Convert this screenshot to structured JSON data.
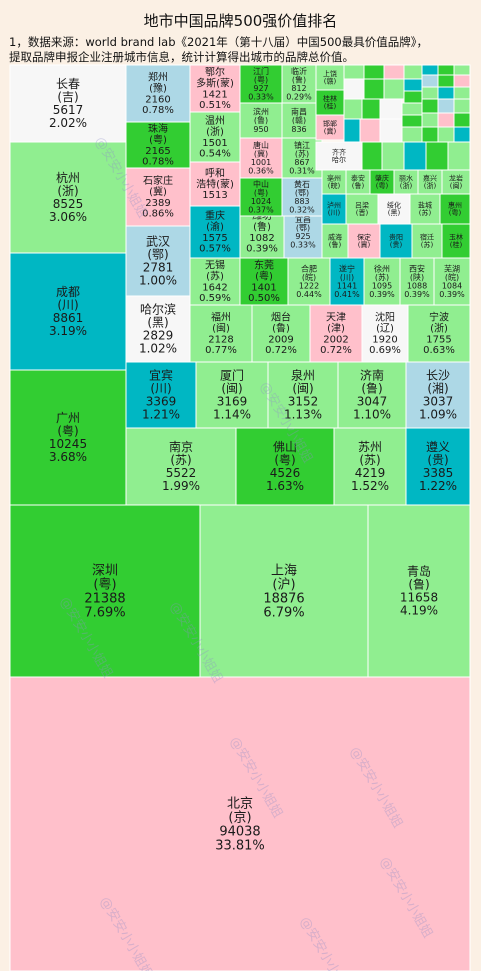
{
  "title": "地市中国品牌500强价值排名",
  "notes": [
    "1，数据来源：world brand lab《2021年（第十八届）中国500最具价值品牌》，",
    "提取品牌申报企业注册城市信息，统计计算得出城市的品牌总价值。"
  ],
  "watermark": "@安安小小姐姐",
  "colors": {
    "pink": "#FFC0CB",
    "lightgreen": "#90EE90",
    "green": "#32CD32",
    "teal": "#00B7C3",
    "lightblue": "#ADD8E6",
    "white": "#F7F7F7",
    "border": "#FFFFFF"
  },
  "chart_data": {
    "type": "treemap",
    "title": "地市中国品牌500强价值排名",
    "value_unit": "",
    "cells": [
      {
        "city": "北京",
        "prov": "(京)",
        "value": 94038,
        "pct": "33.81%",
        "color": "pink"
      },
      {
        "city": "深圳",
        "prov": "(粤)",
        "value": 21388,
        "pct": "7.69%",
        "color": "green"
      },
      {
        "city": "上海",
        "prov": "(沪)",
        "value": 18876,
        "pct": "6.79%",
        "color": "lightgreen"
      },
      {
        "city": "青岛",
        "prov": "(鲁)",
        "value": 11658,
        "pct": "4.19%",
        "color": "lightgreen"
      },
      {
        "city": "广州",
        "prov": "(粤)",
        "value": 10245,
        "pct": "3.68%",
        "color": "green"
      },
      {
        "city": "成都",
        "prov": "(川)",
        "value": 8861,
        "pct": "3.19%",
        "color": "teal"
      },
      {
        "city": "杭州",
        "prov": "(浙)",
        "value": 8525,
        "pct": "3.06%",
        "color": "lightgreen"
      },
      {
        "city": "长春",
        "prov": "(吉)",
        "value": 5617,
        "pct": "2.02%",
        "color": "white"
      },
      {
        "city": "南京",
        "prov": "(苏)",
        "value": 5522,
        "pct": "1.99%",
        "color": "lightgreen"
      },
      {
        "city": "佛山",
        "prov": "(粤)",
        "value": 4526,
        "pct": "1.63%",
        "color": "green"
      },
      {
        "city": "苏州",
        "prov": "(苏)",
        "value": 4219,
        "pct": "1.52%",
        "color": "lightgreen"
      },
      {
        "city": "遵义",
        "prov": "(贵)",
        "value": 3385,
        "pct": "1.22%",
        "color": "teal"
      },
      {
        "city": "宜宾",
        "prov": "(川)",
        "value": 3369,
        "pct": "1.21%",
        "color": "teal"
      },
      {
        "city": "厦门",
        "prov": "(闽)",
        "value": 3169,
        "pct": "1.14%",
        "color": "lightgreen"
      },
      {
        "city": "泉州",
        "prov": "(闽)",
        "value": 3152,
        "pct": "1.13%",
        "color": "lightgreen"
      },
      {
        "city": "济南",
        "prov": "(鲁)",
        "value": 3047,
        "pct": "1.10%",
        "color": "lightgreen"
      },
      {
        "city": "长沙",
        "prov": "(湘)",
        "value": 3037,
        "pct": "1.09%",
        "color": "lightblue"
      },
      {
        "city": "哈尔滨",
        "prov": "(黑)",
        "value": 2829,
        "pct": "1.02%",
        "color": "white"
      },
      {
        "city": "武汉",
        "prov": "(鄂)",
        "value": 2781,
        "pct": "1.00%",
        "color": "lightblue"
      },
      {
        "city": "石家庄",
        "prov": "(冀)",
        "value": 2389,
        "pct": "0.86%",
        "color": "pink"
      },
      {
        "city": "珠海",
        "prov": "(粤)",
        "value": 2165,
        "pct": "0.78%",
        "color": "green"
      },
      {
        "city": "郑州",
        "prov": "(豫)",
        "value": 2160,
        "pct": "0.78%",
        "color": "lightblue"
      },
      {
        "city": "福州",
        "prov": "(闽)",
        "value": 2128,
        "pct": "0.77%",
        "color": "lightgreen"
      },
      {
        "city": "烟台",
        "prov": "(鲁)",
        "value": 2009,
        "pct": "0.72%",
        "color": "lightgreen"
      },
      {
        "city": "天津",
        "prov": "(津)",
        "value": 2002,
        "pct": "0.72%",
        "color": "pink"
      },
      {
        "city": "沈阳",
        "prov": "(辽)",
        "value": 1920,
        "pct": "0.69%",
        "color": "white"
      },
      {
        "city": "宁波",
        "prov": "(浙)",
        "value": 1755,
        "pct": "0.63%",
        "color": "lightgreen"
      },
      {
        "city": "无锡",
        "prov": "(苏)",
        "value": 1642,
        "pct": "0.59%",
        "color": "lightgreen"
      },
      {
        "city": "重庆",
        "prov": "(渝)",
        "value": 1575,
        "pct": "0.57%",
        "color": "teal"
      },
      {
        "city": "呼和浩特",
        "prov": "(蒙)",
        "value": 1513,
        "pct": "0.54%",
        "color": "pink"
      },
      {
        "city": "温州",
        "prov": "(浙)",
        "value": 1501,
        "pct": "0.54%",
        "color": "lightgreen"
      },
      {
        "city": "鄂尔多斯",
        "prov": "(蒙)",
        "value": 1421,
        "pct": "0.51%",
        "color": "pink"
      },
      {
        "city": "东莞",
        "prov": "(粤)",
        "value": 1401,
        "pct": "0.50%",
        "color": "green"
      },
      {
        "city": "合肥",
        "prov": "(皖)",
        "value": 1222,
        "pct": "0.44%",
        "color": "lightgreen"
      },
      {
        "city": "遂宁",
        "prov": "(川)",
        "value": 1141,
        "pct": "0.41%",
        "color": "teal"
      },
      {
        "city": "徐州",
        "prov": "(苏)",
        "value": 1095,
        "pct": "0.39%",
        "color": "lightgreen"
      },
      {
        "city": "西安",
        "prov": "(陕)",
        "value": 1088,
        "pct": "0.39%",
        "color": "lightgreen"
      },
      {
        "city": "芜湖",
        "prov": "(皖)",
        "value": 1084,
        "pct": "0.39%",
        "color": "lightgreen"
      },
      {
        "city": "潍坊",
        "prov": "(鲁)",
        "value": 1082,
        "pct": "0.39%",
        "color": "lightgreen"
      },
      {
        "city": "中山",
        "prov": "(粤)",
        "value": 1024,
        "pct": "0.37%",
        "color": "green"
      },
      {
        "city": "唐山",
        "prov": "(冀)",
        "value": 1001,
        "pct": "0.36%",
        "color": "pink"
      },
      {
        "city": "滨州",
        "prov": "(鲁)",
        "value": 950,
        "pct": "0.34%",
        "color": "lightgreen"
      },
      {
        "city": "江门",
        "prov": "(粤)",
        "value": 927,
        "pct": "0.33%",
        "color": "green"
      },
      {
        "city": "宜昌",
        "prov": "(鄂)",
        "value": 925,
        "pct": "0.33%",
        "color": "lightblue"
      },
      {
        "city": "黄石",
        "prov": "(鄂)",
        "value": 883,
        "pct": "0.32%",
        "color": "lightblue"
      },
      {
        "city": "镇江",
        "prov": "(苏)",
        "value": 867,
        "pct": "0.31%",
        "color": "lightgreen"
      },
      {
        "city": "南昌",
        "prov": "(赣)",
        "value": 836,
        "pct": "0.30%",
        "color": "lightgreen"
      },
      {
        "city": "临沂",
        "prov": "(鲁)",
        "value": 812,
        "pct": "0.29%",
        "color": "lightgreen"
      },
      {
        "city": "上饶",
        "prov": "(赣)",
        "value": null,
        "pct": "",
        "color": "lightgreen"
      },
      {
        "city": "桂林",
        "prov": "(桂)",
        "value": null,
        "pct": "",
        "color": "green"
      },
      {
        "city": "邯郸",
        "prov": "(冀)",
        "value": null,
        "pct": "",
        "color": "pink"
      },
      {
        "city": "齐齐哈尔",
        "prov": "(黑)",
        "value": null,
        "pct": "",
        "color": "white"
      },
      {
        "city": "亳州",
        "prov": "(皖)",
        "value": null,
        "pct": "",
        "color": "lightgreen"
      },
      {
        "city": "泰安",
        "prov": "(鲁)",
        "value": null,
        "pct": "",
        "color": "lightgreen"
      },
      {
        "city": "肇庆",
        "prov": "(粤)",
        "value": null,
        "pct": "",
        "color": "green"
      },
      {
        "city": "丽水",
        "prov": "(浙)",
        "value": null,
        "pct": "",
        "color": "lightgreen"
      },
      {
        "city": "嘉兴",
        "prov": "(浙)",
        "value": null,
        "pct": "",
        "color": "lightgreen"
      },
      {
        "city": "龙岩",
        "prov": "(闽)",
        "value": null,
        "pct": "",
        "color": "lightgreen"
      },
      {
        "city": "泸州",
        "prov": "(川)",
        "value": null,
        "pct": "",
        "color": "teal"
      },
      {
        "city": "吕梁",
        "prov": "(晋)",
        "value": null,
        "pct": "",
        "color": "lightgreen"
      },
      {
        "city": "绥化",
        "prov": "(黑)",
        "value": null,
        "pct": "",
        "color": "white"
      },
      {
        "city": "盐城",
        "prov": "(苏)",
        "value": null,
        "pct": "",
        "color": "lightgreen"
      },
      {
        "city": "惠州",
        "prov": "(粤)",
        "value": null,
        "pct": "",
        "color": "green"
      },
      {
        "city": "威海",
        "prov": "(鲁)",
        "value": null,
        "pct": "",
        "color": "lightgreen"
      },
      {
        "city": "保定",
        "prov": "(冀)",
        "value": null,
        "pct": "",
        "color": "pink"
      },
      {
        "city": "贵阳",
        "prov": "(贵)",
        "value": null,
        "pct": "",
        "color": "teal"
      },
      {
        "city": "宿迁",
        "prov": "(苏)",
        "value": null,
        "pct": "",
        "color": "lightgreen"
      },
      {
        "city": "玉林",
        "prov": "(桂)",
        "value": null,
        "pct": "",
        "color": "green"
      }
    ]
  }
}
